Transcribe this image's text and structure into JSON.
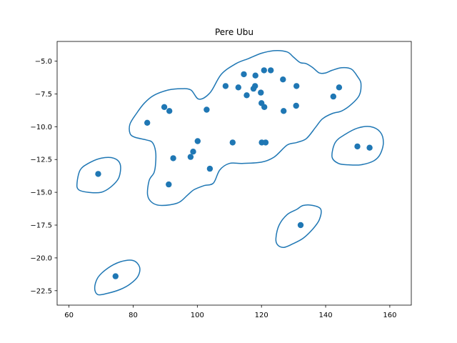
{
  "chart_data": {
    "type": "scatter",
    "title": "Pere Ubu",
    "xlabel": "",
    "ylabel": "",
    "xlim": [
      56.3,
      166.7
    ],
    "ylim": [
      -23.6,
      -3.5
    ],
    "xticks": [
      60,
      80,
      100,
      120,
      140,
      160
    ],
    "yticks": [
      -22.5,
      -20.0,
      -17.5,
      -15.0,
      -12.5,
      -10.0,
      -7.5,
      -5.0
    ],
    "xtick_labels": [
      "60",
      "80",
      "100",
      "120",
      "140",
      "160"
    ],
    "ytick_labels": [
      "−22.5",
      "−20.0",
      "−17.5",
      "−15.0",
      "−12.5",
      "−10.0",
      "−7.5",
      "−5.0"
    ],
    "grid": false,
    "marker_color": "#1f77b4",
    "contour_color": "#1f77b4",
    "points": [
      {
        "x": 69.1,
        "y": -13.6
      },
      {
        "x": 74.5,
        "y": -21.4
      },
      {
        "x": 84.4,
        "y": -9.7
      },
      {
        "x": 89.7,
        "y": -8.5
      },
      {
        "x": 91.3,
        "y": -8.8
      },
      {
        "x": 91.1,
        "y": -14.4
      },
      {
        "x": 92.5,
        "y": -12.4
      },
      {
        "x": 97.9,
        "y": -12.3
      },
      {
        "x": 98.7,
        "y": -11.9
      },
      {
        "x": 100.1,
        "y": -11.1
      },
      {
        "x": 102.9,
        "y": -8.7
      },
      {
        "x": 103.9,
        "y": -13.2
      },
      {
        "x": 108.8,
        "y": -6.9
      },
      {
        "x": 111.0,
        "y": -11.2
      },
      {
        "x": 112.8,
        "y": -7.0
      },
      {
        "x": 114.5,
        "y": -6.0
      },
      {
        "x": 115.4,
        "y": -7.6
      },
      {
        "x": 117.5,
        "y": -7.1
      },
      {
        "x": 118.0,
        "y": -6.9
      },
      {
        "x": 118.1,
        "y": -6.1
      },
      {
        "x": 119.8,
        "y": -7.4
      },
      {
        "x": 120.0,
        "y": -8.2
      },
      {
        "x": 120.1,
        "y": -11.2
      },
      {
        "x": 120.8,
        "y": -5.7
      },
      {
        "x": 120.9,
        "y": -8.5
      },
      {
        "x": 121.3,
        "y": -11.2
      },
      {
        "x": 122.9,
        "y": -5.7
      },
      {
        "x": 126.7,
        "y": -6.4
      },
      {
        "x": 126.9,
        "y": -8.8
      },
      {
        "x": 130.8,
        "y": -8.4
      },
      {
        "x": 130.9,
        "y": -6.9
      },
      {
        "x": 132.2,
        "y": -17.5
      },
      {
        "x": 142.4,
        "y": -7.7
      },
      {
        "x": 144.2,
        "y": -7.0
      },
      {
        "x": 149.9,
        "y": -11.5
      },
      {
        "x": 153.7,
        "y": -11.6
      }
    ],
    "contours": [
      [
        [
          100.5,
          -7.9
        ],
        [
          104,
          -7.4
        ],
        [
          107.5,
          -6.0
        ],
        [
          112,
          -5.2
        ],
        [
          116,
          -4.8
        ],
        [
          120,
          -4.4
        ],
        [
          124,
          -4.2
        ],
        [
          128,
          -4.3
        ],
        [
          130,
          -4.7
        ],
        [
          132,
          -5.1
        ],
        [
          134,
          -5.2
        ],
        [
          136,
          -5.5
        ],
        [
          138,
          -5.9
        ],
        [
          140,
          -5.9
        ],
        [
          142,
          -5.7
        ],
        [
          145,
          -5.5
        ],
        [
          148,
          -5.6
        ],
        [
          150,
          -6.2
        ],
        [
          151,
          -6.7
        ],
        [
          150.5,
          -7.6
        ],
        [
          148,
          -8.3
        ],
        [
          145,
          -8.8
        ],
        [
          142,
          -9.0
        ],
        [
          139,
          -9.4
        ],
        [
          137,
          -10.0
        ],
        [
          134,
          -10.9
        ],
        [
          131,
          -11.2
        ],
        [
          128,
          -11.4
        ],
        [
          124,
          -12.3
        ],
        [
          120,
          -12.7
        ],
        [
          114,
          -12.8
        ],
        [
          110,
          -12.8
        ],
        [
          107,
          -13.3
        ],
        [
          105,
          -14.3
        ],
        [
          102,
          -14.5
        ],
        [
          99,
          -14.8
        ],
        [
          97,
          -15.2
        ],
        [
          94,
          -15.8
        ],
        [
          89,
          -16.0
        ],
        [
          86,
          -15.8
        ],
        [
          84.5,
          -15.2
        ],
        [
          85,
          -14.1
        ],
        [
          86.5,
          -13.5
        ],
        [
          87,
          -12.8
        ],
        [
          87,
          -11.9
        ],
        [
          86,
          -11.2
        ],
        [
          84,
          -11.0
        ],
        [
          80.5,
          -10.8
        ],
        [
          79,
          -10.5
        ],
        [
          79,
          -9.8
        ],
        [
          81,
          -9.0
        ],
        [
          83.5,
          -8.2
        ],
        [
          86.5,
          -7.6
        ],
        [
          91,
          -7.2
        ],
        [
          95,
          -7.1
        ],
        [
          98,
          -7.2
        ],
        [
          100.5,
          -7.9
        ]
      ],
      [
        [
          62.5,
          -14.3
        ],
        [
          63.5,
          -13.3
        ],
        [
          66,
          -12.8
        ],
        [
          70,
          -12.4
        ],
        [
          74,
          -12.4
        ],
        [
          76,
          -12.9
        ],
        [
          75.5,
          -13.9
        ],
        [
          73,
          -14.6
        ],
        [
          70,
          -15.0
        ],
        [
          66,
          -15.0
        ],
        [
          63,
          -14.8
        ],
        [
          62.5,
          -14.3
        ]
      ],
      [
        [
          68,
          -22.3
        ],
        [
          69,
          -21.5
        ],
        [
          72,
          -20.8
        ],
        [
          76,
          -20.3
        ],
        [
          80,
          -20.2
        ],
        [
          82,
          -20.7
        ],
        [
          81.5,
          -21.4
        ],
        [
          79,
          -22.0
        ],
        [
          76,
          -22.4
        ],
        [
          72,
          -22.7
        ],
        [
          69,
          -22.8
        ],
        [
          68,
          -22.3
        ]
      ],
      [
        [
          124.5,
          -18.5
        ],
        [
          125.5,
          -17.5
        ],
        [
          128,
          -16.7
        ],
        [
          131,
          -16.3
        ],
        [
          133,
          -16.0
        ],
        [
          136,
          -16.0
        ],
        [
          138.5,
          -16.3
        ],
        [
          138,
          -17.1
        ],
        [
          136,
          -17.8
        ],
        [
          133,
          -18.5
        ],
        [
          130,
          -18.9
        ],
        [
          127,
          -19.2
        ],
        [
          125,
          -19.0
        ],
        [
          124.5,
          -18.5
        ]
      ],
      [
        [
          142,
          -12.3
        ],
        [
          143,
          -11.2
        ],
        [
          146,
          -10.6
        ],
        [
          150,
          -10.1
        ],
        [
          154,
          -10.0
        ],
        [
          157,
          -10.4
        ],
        [
          158,
          -11.2
        ],
        [
          157,
          -12.1
        ],
        [
          155,
          -12.6
        ],
        [
          151,
          -12.9
        ],
        [
          147,
          -12.9
        ],
        [
          144,
          -12.8
        ],
        [
          142,
          -12.3
        ]
      ]
    ]
  }
}
